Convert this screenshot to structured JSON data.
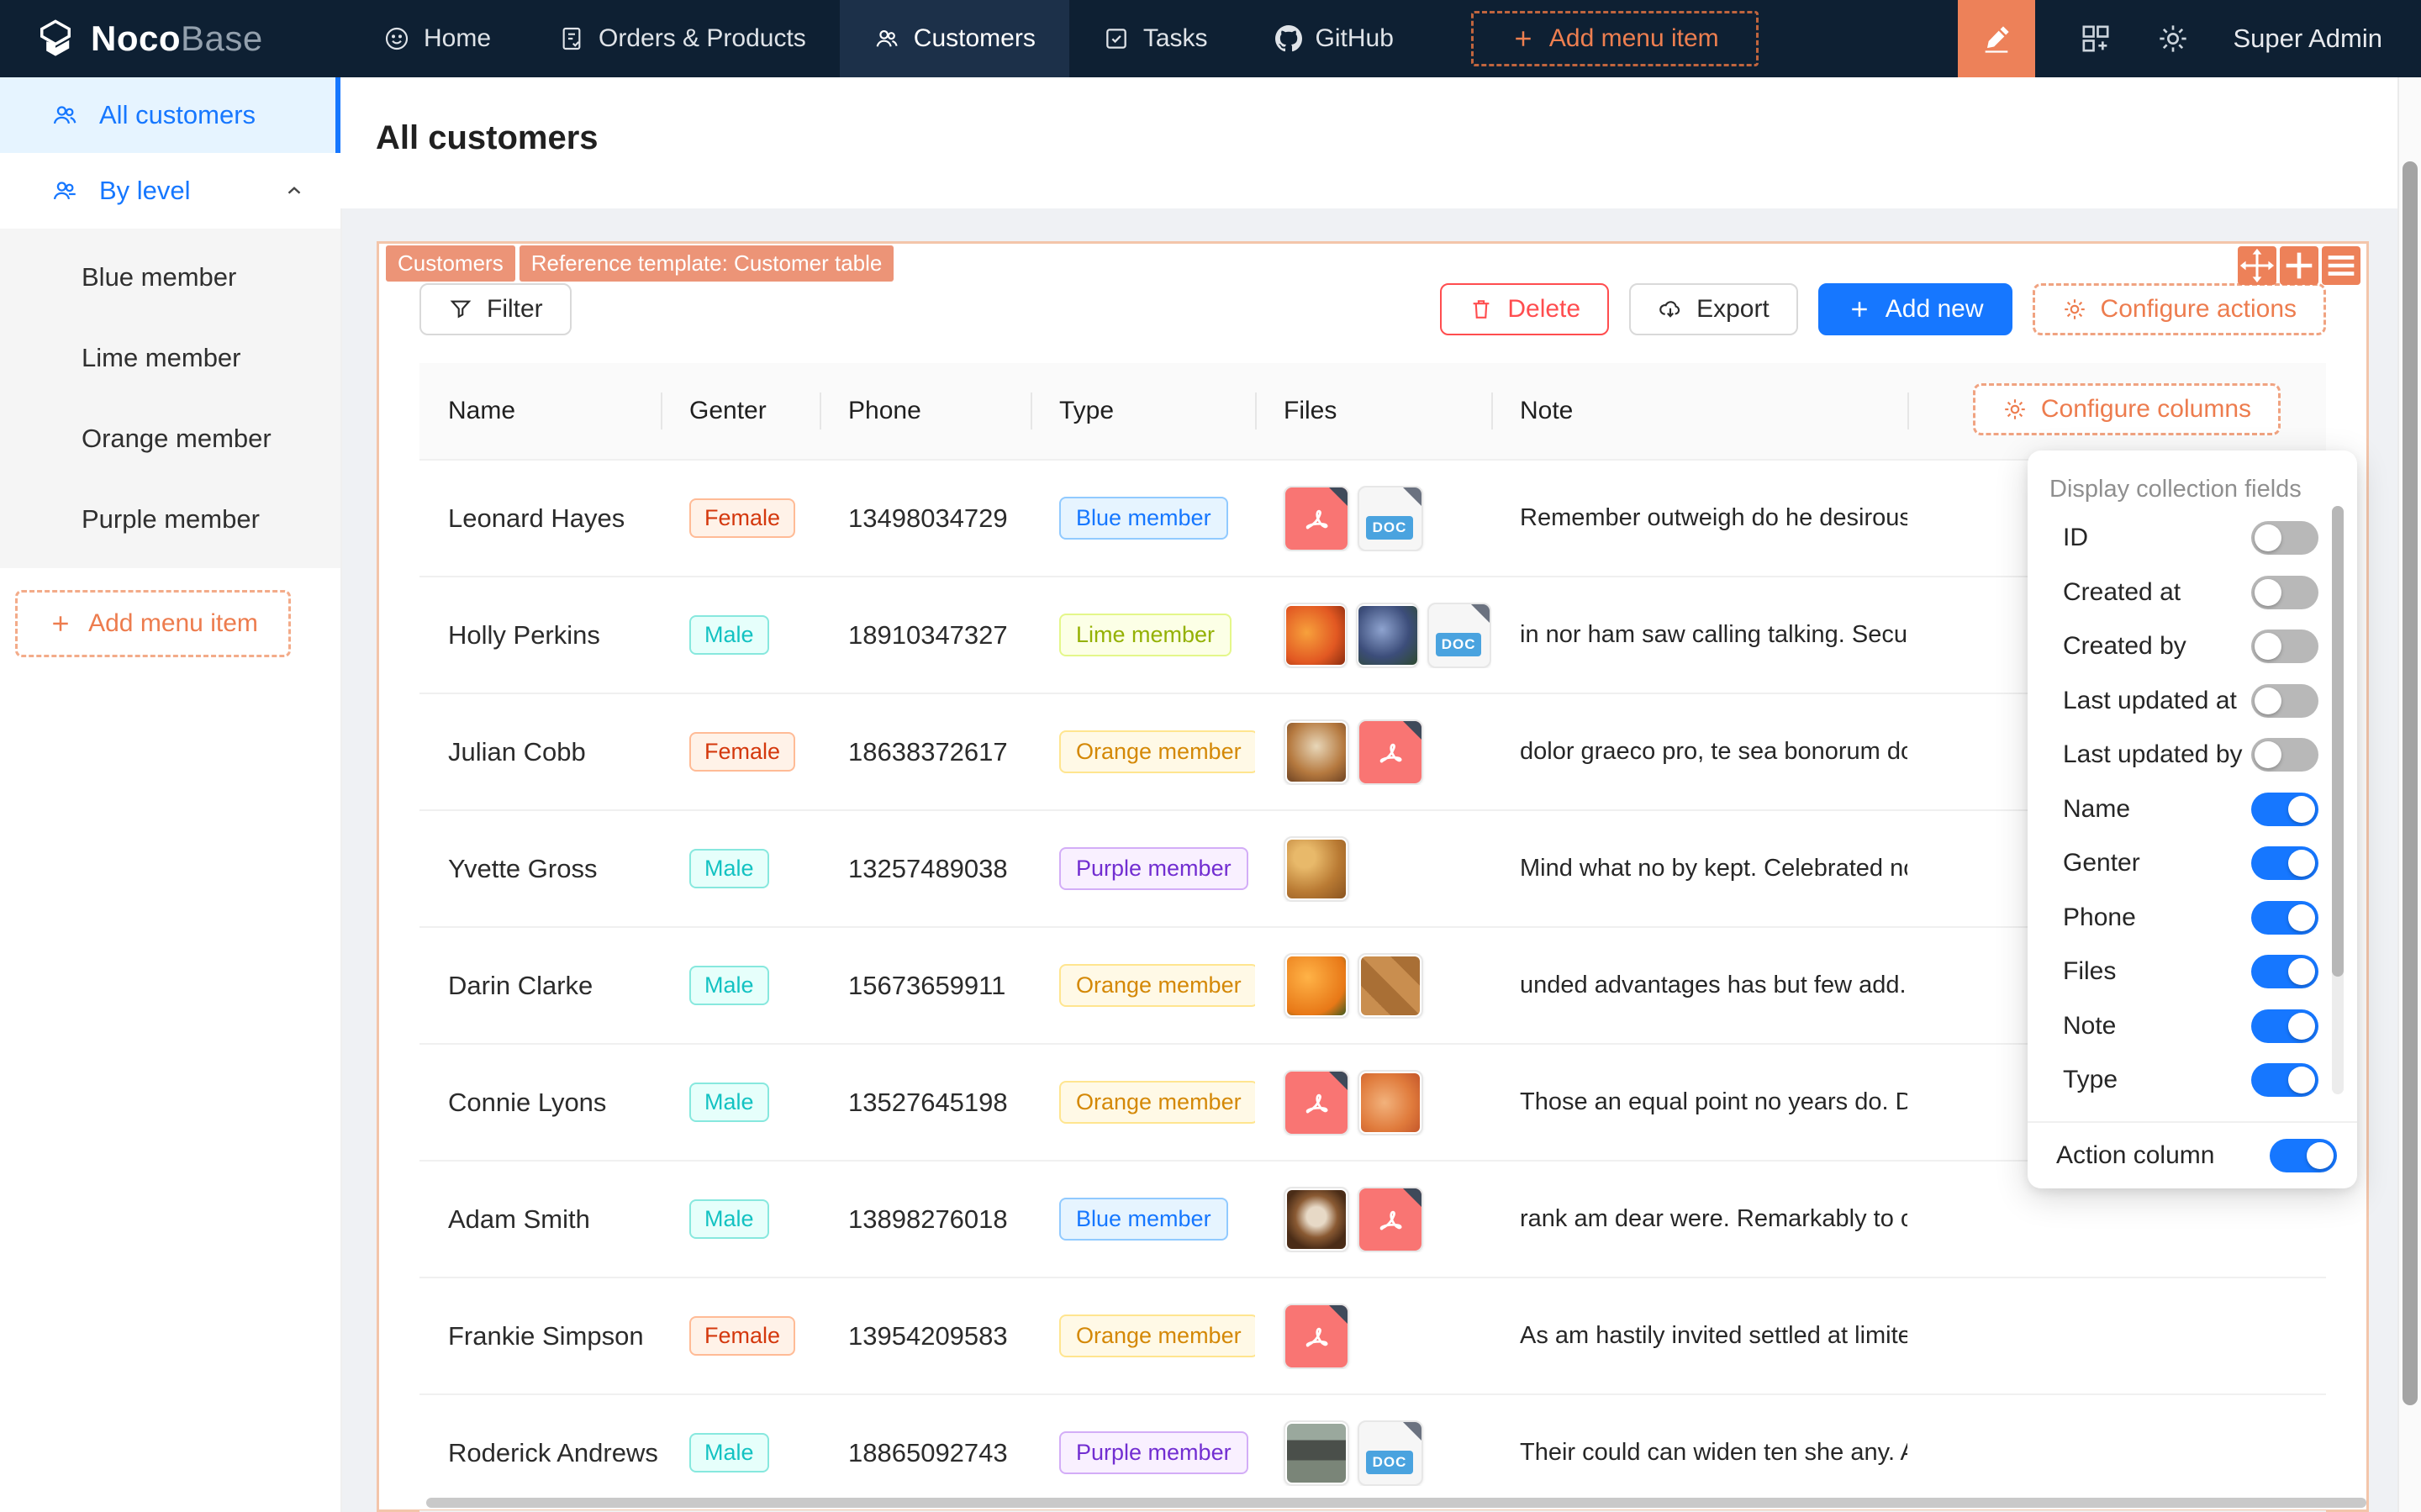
{
  "colors": {
    "primary_blue": "#1677ff",
    "accent_orange": "#ed7d4f",
    "navbar_bg": "#0e2033",
    "tag_salmon": "#ec9477"
  },
  "navbar": {
    "logo_noco": "Noco",
    "logo_base": "Base",
    "items": [
      {
        "label": "Home",
        "icon": "home",
        "active": false
      },
      {
        "label": "Orders & Products",
        "icon": "orders",
        "active": false
      },
      {
        "label": "Customers",
        "icon": "customers",
        "active": true
      },
      {
        "label": "Tasks",
        "icon": "tasks",
        "active": false
      },
      {
        "label": "GitHub",
        "icon": "github",
        "active": false
      }
    ],
    "add_label": "Add menu item",
    "user": "Super Admin"
  },
  "sidebar": {
    "items": [
      {
        "label": "All customers",
        "icon": "customers",
        "active": true,
        "expandable": false
      },
      {
        "label": "By level",
        "icon": "customers-level",
        "active": false,
        "expandable": true
      }
    ],
    "sub_items": [
      "Blue member",
      "Lime member",
      "Orange member",
      "Purple member"
    ],
    "add_label": "Add menu item"
  },
  "page": {
    "title": "All customers"
  },
  "card": {
    "tags": [
      "Customers",
      "Reference template: Customer table"
    ],
    "toolbar": {
      "filter": "Filter",
      "delete": "Delete",
      "export": "Export",
      "add_new": "Add new",
      "configure_actions": "Configure actions"
    }
  },
  "table": {
    "columns": [
      "Name",
      "Genter",
      "Phone",
      "Type",
      "Files",
      "Note"
    ],
    "configure_columns": "Configure columns",
    "rows": [
      {
        "name": "Leonard Hayes",
        "gender": "Female",
        "gender_color": "volcano",
        "phone": "13498034729",
        "type": "Blue member",
        "type_color": "blue",
        "files": [
          {
            "kind": "pdf"
          },
          {
            "kind": "doc"
          }
        ],
        "note": "Remember outweigh do he desirous no c..."
      },
      {
        "name": "Holly Perkins",
        "gender": "Male",
        "gender_color": "cyan",
        "phone": "18910347327",
        "type": "Lime member",
        "type_color": "lime",
        "files": [
          {
            "kind": "img",
            "img": "orange-fruit"
          },
          {
            "kind": "img",
            "img": "grapes"
          },
          {
            "kind": "doc"
          }
        ],
        "note": "in nor ham saw calling talking. Securing a..."
      },
      {
        "name": "Julian Cobb",
        "gender": "Female",
        "gender_color": "volcano",
        "phone": "18638372617",
        "type": "Orange member",
        "type_color": "gold",
        "files": [
          {
            "kind": "img",
            "img": "food-platter"
          },
          {
            "kind": "pdf"
          }
        ],
        "note": "dolor graeco pro, te sea bonorum doloru..."
      },
      {
        "name": "Yvette Gross",
        "gender": "Male",
        "gender_color": "cyan",
        "phone": "13257489038",
        "type": "Purple member",
        "type_color": "purple",
        "files": [
          {
            "kind": "img",
            "img": "cookies"
          }
        ],
        "note": "Mind what no by kept. Celebrated no he ..."
      },
      {
        "name": "Darin Clarke",
        "gender": "Male",
        "gender_color": "cyan",
        "phone": "15673659911",
        "type": "Orange member",
        "type_color": "gold",
        "files": [
          {
            "kind": "img",
            "img": "oranges"
          },
          {
            "kind": "img",
            "img": "pumpkins"
          }
        ],
        "note": "unded advantages has but few add. Yet w..."
      },
      {
        "name": "Connie Lyons",
        "gender": "Male",
        "gender_color": "cyan",
        "phone": "13527645198",
        "type": "Orange member",
        "type_color": "gold",
        "files": [
          {
            "kind": "pdf"
          },
          {
            "kind": "img",
            "img": "onions"
          }
        ],
        "note": "Those an equal point no years do. Depen..."
      },
      {
        "name": "Adam Smith",
        "gender": "Male",
        "gender_color": "cyan",
        "phone": "13898276018",
        "type": "Blue member",
        "type_color": "blue",
        "files": [
          {
            "kind": "img",
            "img": "coffee"
          },
          {
            "kind": "pdf"
          }
        ],
        "note": "rank am dear were. Remarkably to contin..."
      },
      {
        "name": "Frankie Simpson",
        "gender": "Female",
        "gender_color": "volcano",
        "phone": "13954209583",
        "type": "Orange member",
        "type_color": "gold",
        "files": [
          {
            "kind": "pdf"
          }
        ],
        "note": "As am hastily invited settled at limited civ..."
      },
      {
        "name": "Roderick Andrews",
        "gender": "Male",
        "gender_color": "cyan",
        "phone": "18865092743",
        "type": "Purple member",
        "type_color": "purple",
        "files": [
          {
            "kind": "img",
            "img": "storefront"
          },
          {
            "kind": "doc"
          }
        ],
        "note": "Their could can widen ten she any. As so ..."
      }
    ]
  },
  "dropdown": {
    "title": "Display collection fields",
    "fields": [
      {
        "label": "ID",
        "on": false
      },
      {
        "label": "Created at",
        "on": false
      },
      {
        "label": "Created by",
        "on": false
      },
      {
        "label": "Last updated at",
        "on": false
      },
      {
        "label": "Last updated by",
        "on": false
      },
      {
        "label": "Name",
        "on": true
      },
      {
        "label": "Genter",
        "on": true
      },
      {
        "label": "Phone",
        "on": true
      },
      {
        "label": "Files",
        "on": true
      },
      {
        "label": "Note",
        "on": true
      },
      {
        "label": "Type",
        "on": true
      }
    ],
    "action_column": {
      "label": "Action column",
      "on": true
    }
  },
  "doc_badge": "DOC"
}
